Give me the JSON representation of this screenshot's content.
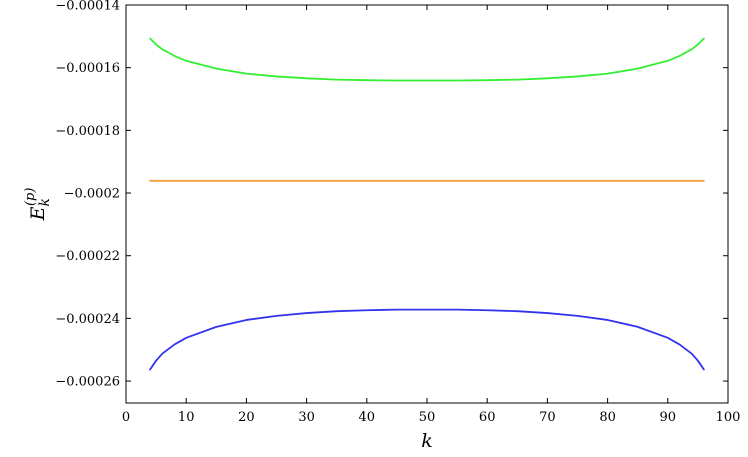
{
  "chart_data": {
    "type": "line",
    "title": "",
    "xlabel": "k",
    "ylabel": {
      "base": "E",
      "sub": "k",
      "sup": "(p)"
    },
    "xlim": [
      0,
      100
    ],
    "ylim": [
      -0.000267,
      -0.00014
    ],
    "grid": false,
    "legend": "none",
    "x_ticks": [
      0,
      10,
      20,
      30,
      40,
      50,
      60,
      70,
      80,
      90,
      100
    ],
    "x_tick_labels": [
      "0",
      "10",
      "20",
      "30",
      "40",
      "50",
      "60",
      "70",
      "80",
      "90",
      "100"
    ],
    "y_ticks": [
      -0.00014,
      -0.00016,
      -0.00018,
      -0.0002,
      -0.00022,
      -0.00024,
      -0.00026
    ],
    "y_tick_labels": [
      "−0.00014",
      "−0.00016",
      "−0.00018",
      "−0.0002",
      "−0.00022",
      "−0.00024",
      "−0.00026"
    ],
    "series": [
      {
        "color": "#33ee33",
        "x": [
          4,
          5,
          6,
          8,
          10,
          15,
          20,
          25,
          30,
          35,
          40,
          45,
          50,
          55,
          60,
          65,
          70,
          75,
          80,
          85,
          90,
          92,
          94,
          95,
          96
        ],
        "y": [
          -0.0001507,
          -0.0001526,
          -0.0001541,
          -0.0001562,
          -0.0001578,
          -0.0001603,
          -0.0001619,
          -0.0001628,
          -0.0001634,
          -0.0001638,
          -0.000164,
          -0.0001641,
          -0.0001641,
          -0.0001641,
          -0.000164,
          -0.0001638,
          -0.0001634,
          -0.0001628,
          -0.0001619,
          -0.0001603,
          -0.0001578,
          -0.0001562,
          -0.0001541,
          -0.0001526,
          -0.0001507
        ]
      },
      {
        "color": "#f4a040",
        "x": [
          4,
          96
        ],
        "y": [
          -0.0001961,
          -0.0001961
        ]
      },
      {
        "color": "#3333ee",
        "x": [
          4,
          5,
          6,
          8,
          10,
          15,
          20,
          25,
          30,
          35,
          40,
          45,
          50,
          55,
          60,
          65,
          70,
          75,
          80,
          85,
          90,
          92,
          94,
          95,
          96
        ],
        "y": [
          -0.0002563,
          -0.0002535,
          -0.0002513,
          -0.0002484,
          -0.0002462,
          -0.0002427,
          -0.0002405,
          -0.0002392,
          -0.0002383,
          -0.0002377,
          -0.0002374,
          -0.0002372,
          -0.0002372,
          -0.0002372,
          -0.0002374,
          -0.0002377,
          -0.0002383,
          -0.0002392,
          -0.0002405,
          -0.0002427,
          -0.0002462,
          -0.0002484,
          -0.0002513,
          -0.0002535,
          -0.0002563
        ]
      }
    ]
  }
}
